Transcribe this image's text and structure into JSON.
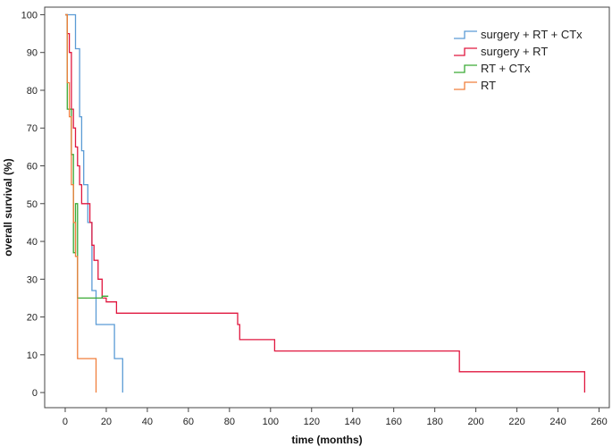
{
  "chart_data": {
    "type": "line",
    "subtype": "kaplan-meier step",
    "title": "",
    "xlabel": "time (months)",
    "ylabel": "overall survival (%)",
    "xlim": [
      -10,
      265
    ],
    "ylim": [
      -4,
      102
    ],
    "xticks": [
      0,
      20,
      40,
      60,
      80,
      100,
      120,
      140,
      160,
      180,
      200,
      220,
      240,
      260
    ],
    "yticks": [
      0,
      10,
      20,
      30,
      40,
      50,
      60,
      70,
      80,
      90,
      100
    ],
    "legend_position": "top-right",
    "series": [
      {
        "name": "surgery + RT + CTx",
        "color": "#5b9bd5",
        "points": [
          [
            0,
            100
          ],
          [
            5,
            100
          ],
          [
            5,
            91
          ],
          [
            7,
            91
          ],
          [
            7,
            73
          ],
          [
            8,
            73
          ],
          [
            8,
            64
          ],
          [
            9,
            64
          ],
          [
            9,
            55
          ],
          [
            11,
            55
          ],
          [
            11,
            45
          ],
          [
            13,
            45
          ],
          [
            13,
            27
          ],
          [
            15,
            27
          ],
          [
            15,
            18
          ],
          [
            24,
            18
          ],
          [
            24,
            9
          ],
          [
            28,
            9
          ],
          [
            28,
            0
          ]
        ]
      },
      {
        "name": "surgery + RT",
        "color": "#e0173f",
        "points": [
          [
            0,
            100
          ],
          [
            1,
            100
          ],
          [
            1,
            95
          ],
          [
            2,
            95
          ],
          [
            2,
            90
          ],
          [
            3,
            90
          ],
          [
            3,
            75
          ],
          [
            4,
            75
          ],
          [
            4,
            70
          ],
          [
            5,
            70
          ],
          [
            5,
            65
          ],
          [
            6,
            65
          ],
          [
            6,
            60
          ],
          [
            7,
            60
          ],
          [
            7,
            55
          ],
          [
            8,
            55
          ],
          [
            8,
            50
          ],
          [
            12,
            50
          ],
          [
            12,
            45
          ],
          [
            13,
            45
          ],
          [
            13,
            39
          ],
          [
            14,
            39
          ],
          [
            14,
            35
          ],
          [
            16,
            35
          ],
          [
            16,
            30
          ],
          [
            18,
            30
          ],
          [
            18,
            25
          ],
          [
            20,
            25
          ],
          [
            20,
            24
          ],
          [
            25,
            24
          ],
          [
            25,
            21
          ],
          [
            84,
            21
          ],
          [
            84,
            18
          ],
          [
            85,
            18
          ],
          [
            85,
            14
          ],
          [
            102,
            14
          ],
          [
            102,
            11
          ],
          [
            192,
            11
          ],
          [
            192,
            5.5
          ],
          [
            253,
            5.5
          ],
          [
            253,
            0
          ]
        ]
      },
      {
        "name": "RT + CTx",
        "color": "#3aaa35",
        "points": [
          [
            0,
            100
          ],
          [
            1,
            100
          ],
          [
            1,
            75
          ],
          [
            3,
            75
          ],
          [
            3,
            63
          ],
          [
            4,
            63
          ],
          [
            4,
            37
          ],
          [
            5,
            37
          ],
          [
            5,
            50
          ],
          [
            6,
            50
          ],
          [
            6,
            25
          ],
          [
            18,
            25
          ],
          [
            18,
            25.5
          ],
          [
            21,
            25.5
          ]
        ]
      },
      {
        "name": "RT",
        "color": "#f07f3c",
        "points": [
          [
            0,
            100
          ],
          [
            1,
            100
          ],
          [
            1,
            82
          ],
          [
            2,
            82
          ],
          [
            2,
            73
          ],
          [
            3,
            73
          ],
          [
            3,
            55
          ],
          [
            4,
            55
          ],
          [
            4,
            45
          ],
          [
            5,
            45
          ],
          [
            5,
            36
          ],
          [
            6,
            36
          ],
          [
            6,
            9
          ],
          [
            15,
            9
          ],
          [
            15,
            0
          ]
        ]
      }
    ]
  }
}
